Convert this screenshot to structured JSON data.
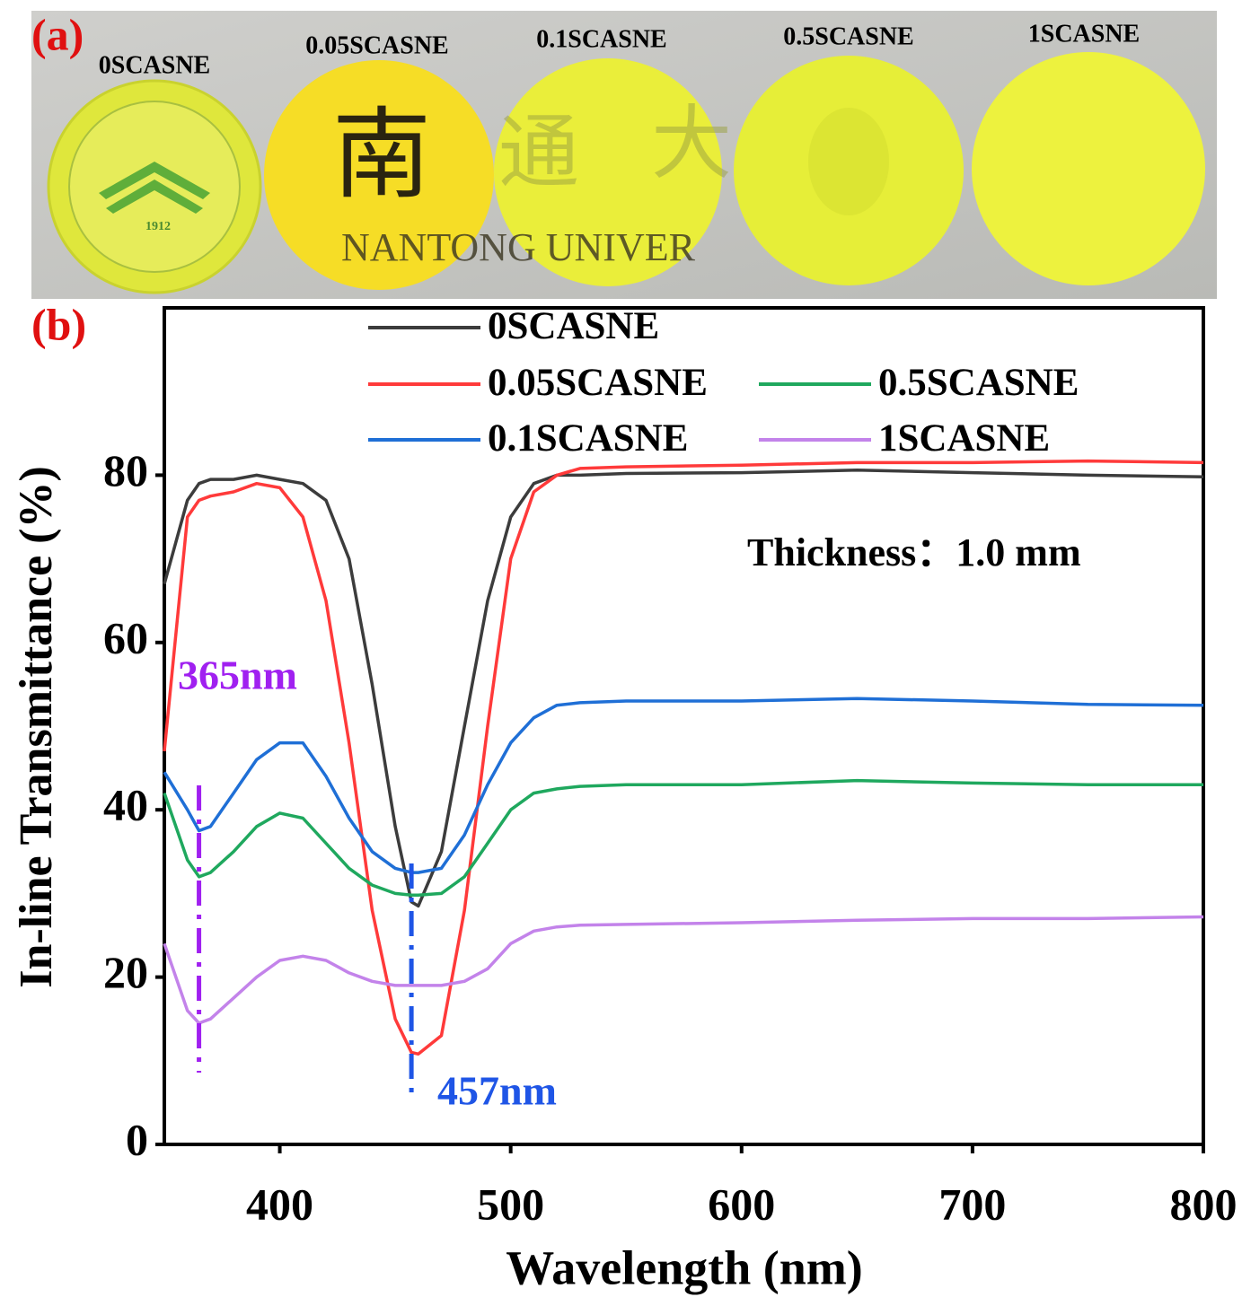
{
  "panel_a": {
    "label": "(a)",
    "sample_labels": [
      "0SCASNE",
      "0.05SCASNE",
      "0.1SCASNE",
      "0.5SCASNE",
      "1SCASNE"
    ],
    "photo_texts": [
      "南",
      "通",
      "大",
      "NANTONG UNIVER",
      "1912"
    ]
  },
  "chart_data": {
    "type": "line",
    "panel_label": "(b)",
    "x_label": "Wavelength (nm)",
    "y_label": "In-line Transmittance (%)",
    "x": [
      350,
      360,
      365,
      370,
      380,
      390,
      400,
      410,
      420,
      430,
      440,
      450,
      457,
      460,
      470,
      480,
      490,
      500,
      510,
      520,
      530,
      550,
      600,
      650,
      700,
      750,
      800
    ],
    "series": [
      {
        "name": "0SCASNE",
        "color": "#3c3c3c",
        "values": [
          67,
          77,
          79,
          79.5,
          79.5,
          80,
          79.5,
          79,
          77,
          70,
          55,
          38,
          29,
          28.5,
          35,
          50,
          65,
          75,
          79,
          80,
          80,
          80.2,
          80.3,
          80.6,
          80.3,
          80,
          79.8
        ]
      },
      {
        "name": "0.05SCASNE",
        "color": "#ff3a3a",
        "values": [
          47,
          75,
          77,
          77.5,
          78,
          79,
          78.5,
          75,
          65,
          48,
          28,
          15,
          11,
          10.8,
          13,
          28,
          50,
          70,
          78,
          80,
          80.8,
          81,
          81.2,
          81.5,
          81.5,
          81.7,
          81.5
        ]
      },
      {
        "name": "0.1SCASNE",
        "color": "#1f6fd6",
        "values": [
          44.5,
          40,
          37.5,
          38,
          42,
          46,
          48,
          48,
          44,
          39,
          35,
          33,
          32.5,
          32.5,
          33,
          37,
          43,
          48,
          51,
          52.5,
          52.8,
          53,
          53,
          53.3,
          53,
          52.6,
          52.5
        ]
      },
      {
        "name": "0.5SCASNE",
        "color": "#1fa85e",
        "values": [
          42,
          34,
          32,
          32.5,
          35,
          38,
          39.6,
          39,
          36,
          33,
          31,
          30,
          29.8,
          29.8,
          30,
          32,
          36,
          40,
          42,
          42.5,
          42.8,
          43,
          43,
          43.5,
          43.2,
          43,
          43
        ]
      },
      {
        "name": "1SCASNE",
        "color": "#c383ea",
        "values": [
          24,
          16,
          14.5,
          15,
          17.5,
          20,
          22,
          22.5,
          22,
          20.5,
          19.5,
          19,
          19,
          19,
          19,
          19.5,
          21,
          24,
          25.5,
          26,
          26.2,
          26.3,
          26.5,
          26.8,
          27,
          27,
          27.2
        ]
      }
    ],
    "xlim": [
      350,
      800
    ],
    "xticks": [
      400,
      500,
      600,
      700,
      800
    ],
    "ylim": [
      0,
      100
    ],
    "yticks": [
      0,
      20,
      40,
      60,
      80
    ],
    "annotations": [
      {
        "text": "365nm",
        "x": 365,
        "color": "#a020f0"
      },
      {
        "text": "457nm",
        "x": 457,
        "color": "#1f55e6"
      },
      {
        "text": "Thickness：1.0 mm"
      }
    ]
  }
}
